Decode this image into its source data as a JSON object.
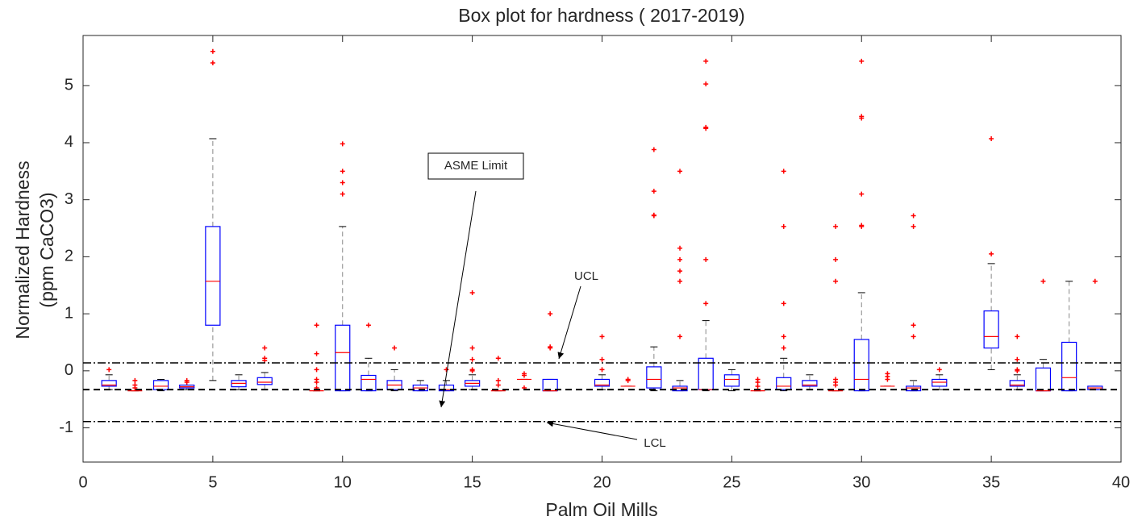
{
  "chart_data": {
    "type": "box",
    "title": "Box plot for hardness ( 2017-2019)",
    "xlabel": "Palm Oil Mills",
    "ylabel": [
      "Normalized Hardness",
      "(ppm CaCO3)"
    ],
    "xlim": [
      0,
      40
    ],
    "ylim": [
      -1.6,
      5.88
    ],
    "xticks": [
      0,
      5,
      10,
      15,
      20,
      25,
      30,
      35,
      40
    ],
    "yticks": [
      -1,
      0,
      1,
      2,
      3,
      4,
      5
    ],
    "box_color": "#0000ff",
    "median_color": "#ff0000",
    "outlier_color": "#ff0000",
    "boxes": [
      {
        "x": 1,
        "min": -0.33,
        "q1": -0.27,
        "median": -0.25,
        "q3": -0.17,
        "max": -0.07,
        "outliers": [
          0.02
        ]
      },
      {
        "x": 2,
        "min": -0.35,
        "q1": -0.35,
        "median": -0.35,
        "q3": -0.35,
        "max": -0.35,
        "outliers": [
          -0.17,
          -0.25,
          -0.3
        ]
      },
      {
        "x": 3,
        "min": -0.35,
        "q1": -0.33,
        "median": -0.27,
        "q3": -0.17,
        "max": -0.15,
        "outliers": []
      },
      {
        "x": 4,
        "min": -0.33,
        "q1": -0.3,
        "median": -0.28,
        "q3": -0.25,
        "max": -0.25,
        "outliers": [
          -0.17,
          -0.2
        ]
      },
      {
        "x": 5,
        "min": -0.17,
        "q1": 0.8,
        "median": 1.57,
        "q3": 2.53,
        "max": 4.07,
        "outliers": [
          5.4,
          5.6
        ]
      },
      {
        "x": 6,
        "min": -0.33,
        "q1": -0.28,
        "median": -0.22,
        "q3": -0.17,
        "max": -0.07,
        "outliers": []
      },
      {
        "x": 7,
        "min": -0.33,
        "q1": -0.24,
        "median": -0.2,
        "q3": -0.12,
        "max": -0.03,
        "outliers": [
          0.18,
          0.22,
          0.4
        ]
      },
      {
        "x": 9,
        "min": -0.35,
        "q1": -0.35,
        "median": -0.35,
        "q3": -0.35,
        "max": -0.35,
        "outliers": [
          0.8,
          0.3,
          0.02,
          -0.15,
          -0.2,
          -0.3
        ]
      },
      {
        "x": 10,
        "min": -0.35,
        "q1": -0.35,
        "median": 0.32,
        "q3": 0.8,
        "max": 2.53,
        "outliers": [
          3.1,
          3.3,
          3.5,
          3.98
        ]
      },
      {
        "x": 11,
        "min": -0.35,
        "q1": -0.35,
        "median": -0.15,
        "q3": -0.08,
        "max": 0.22,
        "outliers": [
          0.8
        ]
      },
      {
        "x": 12,
        "min": -0.35,
        "q1": -0.33,
        "median": -0.25,
        "q3": -0.17,
        "max": 0.02,
        "outliers": [
          0.4
        ]
      },
      {
        "x": 13,
        "min": -0.35,
        "q1": -0.35,
        "median": -0.3,
        "q3": -0.25,
        "max": -0.17,
        "outliers": []
      },
      {
        "x": 14,
        "min": -0.35,
        "q1": -0.35,
        "median": -0.33,
        "q3": -0.25,
        "max": -0.17,
        "outliers": [
          0.02
        ]
      },
      {
        "x": 15,
        "min": -0.33,
        "q1": -0.27,
        "median": -0.22,
        "q3": -0.17,
        "max": -0.07,
        "outliers": [
          1.37,
          0.4,
          0.2,
          0.02,
          0
        ]
      },
      {
        "x": 16,
        "min": -0.35,
        "q1": -0.35,
        "median": -0.35,
        "q3": -0.35,
        "max": -0.35,
        "outliers": [
          0.22,
          -0.17,
          -0.25
        ]
      },
      {
        "x": 17,
        "min": -0.15,
        "q1": -0.15,
        "median": -0.15,
        "q3": -0.15,
        "max": -0.15,
        "outliers": [
          -0.05,
          -0.08,
          -0.3
        ]
      },
      {
        "x": 18,
        "min": -0.35,
        "q1": -0.35,
        "median": -0.35,
        "q3": -0.15,
        "max": -0.15,
        "outliers": [
          1.0,
          0.42,
          0.4
        ]
      },
      {
        "x": 20,
        "min": -0.33,
        "q1": -0.27,
        "median": -0.25,
        "q3": -0.15,
        "max": -0.07,
        "outliers": [
          0.6,
          0.2,
          0.02
        ]
      },
      {
        "x": 21,
        "min": -0.27,
        "q1": -0.27,
        "median": -0.27,
        "q3": -0.27,
        "max": -0.27,
        "outliers": [
          -0.15,
          -0.17
        ]
      },
      {
        "x": 22,
        "min": -0.35,
        "q1": -0.3,
        "median": -0.15,
        "q3": 0.07,
        "max": 0.42,
        "outliers": [
          2.72,
          2.73,
          3.15,
          3.88
        ]
      },
      {
        "x": 23,
        "min": -0.35,
        "q1": -0.35,
        "median": -0.3,
        "q3": -0.27,
        "max": -0.17,
        "outliers": [
          0.6,
          1.57,
          1.75,
          1.95,
          2.15,
          3.5
        ]
      },
      {
        "x": 24,
        "min": -0.35,
        "q1": -0.33,
        "median": -0.33,
        "q3": 0.22,
        "max": 0.88,
        "outliers": [
          1.18,
          1.95,
          4.25,
          4.27,
          5.03,
          5.43
        ]
      },
      {
        "x": 25,
        "min": -0.35,
        "q1": -0.27,
        "median": -0.15,
        "q3": -0.07,
        "max": 0.02,
        "outliers": []
      },
      {
        "x": 26,
        "min": -0.35,
        "q1": -0.35,
        "median": -0.35,
        "q3": -0.35,
        "max": -0.35,
        "outliers": [
          -0.15,
          -0.2,
          -0.27
        ]
      },
      {
        "x": 27,
        "min": -0.35,
        "q1": -0.33,
        "median": -0.27,
        "q3": -0.12,
        "max": 0.22,
        "outliers": [
          0.4,
          0.6,
          1.18,
          2.53,
          3.5
        ]
      },
      {
        "x": 28,
        "min": -0.33,
        "q1": -0.27,
        "median": -0.25,
        "q3": -0.17,
        "max": -0.07,
        "outliers": []
      },
      {
        "x": 29,
        "min": -0.35,
        "q1": -0.35,
        "median": -0.35,
        "q3": -0.35,
        "max": -0.35,
        "outliers": [
          1.57,
          1.95,
          2.53,
          -0.15,
          -0.2,
          -0.25
        ]
      },
      {
        "x": 30,
        "min": -0.35,
        "q1": -0.35,
        "median": -0.15,
        "q3": 0.55,
        "max": 1.37,
        "outliers": [
          2.53,
          2.55,
          3.1,
          4.43,
          4.46,
          5.43
        ]
      },
      {
        "x": 31,
        "min": -0.27,
        "q1": -0.27,
        "median": -0.27,
        "q3": -0.27,
        "max": -0.27,
        "outliers": [
          -0.05,
          -0.1,
          -0.15
        ]
      },
      {
        "x": 32,
        "min": -0.35,
        "q1": -0.35,
        "median": -0.3,
        "q3": -0.27,
        "max": -0.17,
        "outliers": [
          0.6,
          0.8,
          2.53,
          2.72
        ]
      },
      {
        "x": 33,
        "min": -0.33,
        "q1": -0.27,
        "median": -0.2,
        "q3": -0.15,
        "max": -0.07,
        "outliers": [
          0.02
        ]
      },
      {
        "x": 35,
        "min": 0.02,
        "q1": 0.4,
        "median": 0.6,
        "q3": 1.05,
        "max": 1.88,
        "outliers": [
          2.05,
          4.07
        ]
      },
      {
        "x": 36,
        "min": -0.33,
        "q1": -0.27,
        "median": -0.25,
        "q3": -0.17,
        "max": -0.07,
        "outliers": [
          0.6,
          0.2,
          0.02,
          0
        ]
      },
      {
        "x": 37,
        "min": -0.35,
        "q1": -0.35,
        "median": -0.35,
        "q3": 0.05,
        "max": 0.2,
        "outliers": [
          1.57
        ]
      },
      {
        "x": 38,
        "min": -0.35,
        "q1": -0.35,
        "median": -0.12,
        "q3": 0.5,
        "max": 1.57,
        "outliers": []
      },
      {
        "x": 39,
        "min": -0.33,
        "q1": -0.33,
        "median": -0.3,
        "q3": -0.27,
        "max": -0.27,
        "outliers": [
          1.57
        ]
      }
    ],
    "reference_lines": [
      {
        "label": "UCL",
        "value": 0.14,
        "style": "dashdot"
      },
      {
        "label": "ASME Limit",
        "value": -0.33,
        "style": "dashed"
      },
      {
        "label": "LCL",
        "value": -0.89,
        "style": "dashdot"
      }
    ]
  }
}
